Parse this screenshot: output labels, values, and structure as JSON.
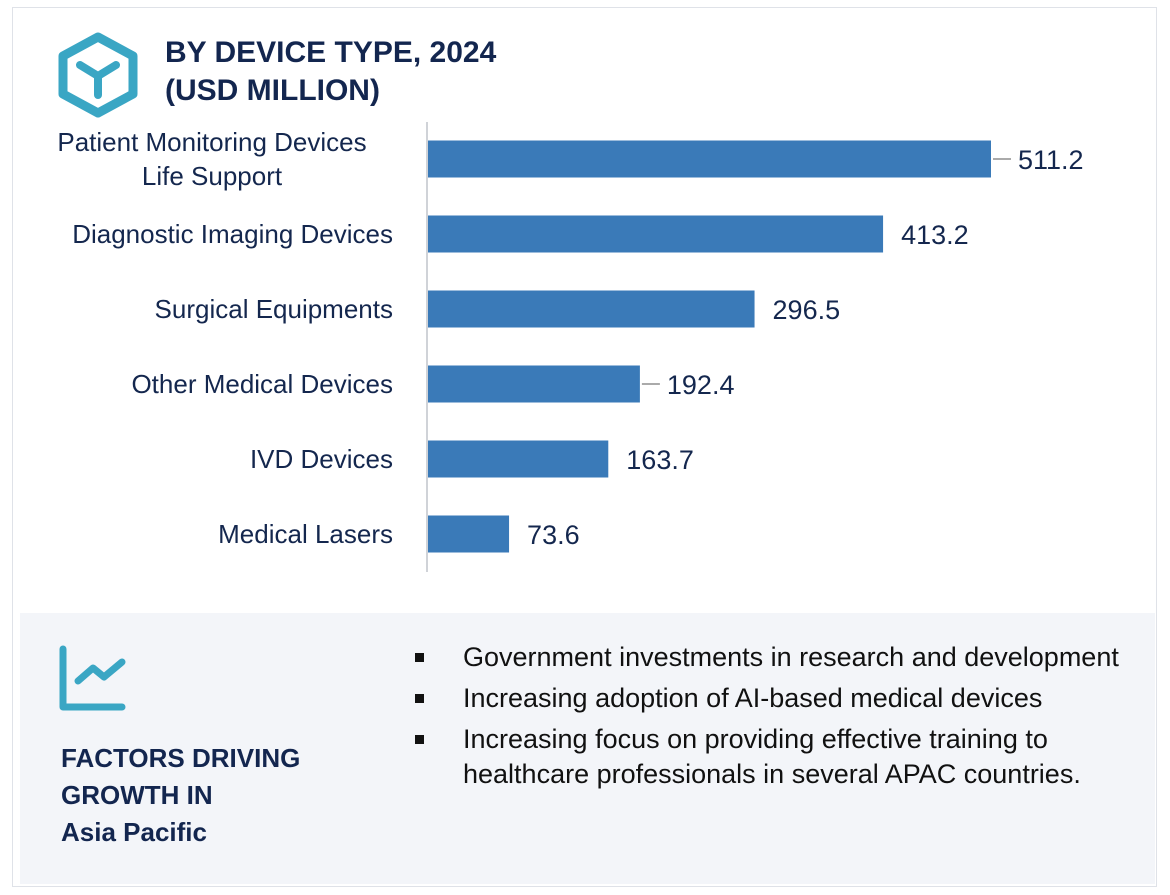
{
  "header": {
    "icon": "hexagon-y-icon",
    "title_line1": "BY DEVICE TYPE, 2024",
    "title_line2": "(USD MILLION)"
  },
  "chart_data": {
    "type": "bar",
    "orientation": "horizontal",
    "title": "BY DEVICE TYPE, 2024 (USD MILLION)",
    "categories": [
      [
        "Patient Monitoring Devices",
        "Life Support"
      ],
      [
        "Diagnostic Imaging Devices"
      ],
      [
        "Surgical Equipments"
      ],
      [
        "Other Medical Devices"
      ],
      [
        "IVD Devices"
      ],
      [
        "Medical Lasers"
      ]
    ],
    "values": [
      511.2,
      413.2,
      296.5,
      192.4,
      163.7,
      73.6
    ],
    "value_labels": [
      "511.2",
      "413.2",
      "296.5",
      "192.4",
      "163.7",
      "73.6"
    ],
    "bar_color": "#3a7ab8",
    "grid": false,
    "legend": "none"
  },
  "factors": {
    "icon": "trend-line-chart-icon",
    "heading_line1": "FACTORS DRIVING",
    "heading_line2": "GROWTH IN",
    "heading_line3": "Asia Pacific",
    "items": [
      "Government investments in research and development",
      "Increasing adoption of AI-based medical devices",
      "Increasing focus on providing effective training to healthcare professionals in several APAC countries."
    ]
  },
  "colors": {
    "accent": "#3aa6c4",
    "navy": "#13264f",
    "bar": "#3a7ab8",
    "panel": "#f3f5f9"
  }
}
